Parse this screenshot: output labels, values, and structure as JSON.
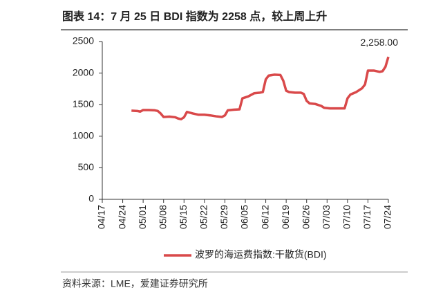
{
  "chart_data": {
    "type": "line",
    "title": "图表 14：7 月 25 日 BDI 指数为 2258 点，较上周上升",
    "source": "资料来源：LME，爱建证券研究所",
    "x": [
      "04/27",
      "04/29",
      "04/30",
      "05/01",
      "05/03",
      "05/05",
      "05/06",
      "05/07",
      "05/08",
      "05/10",
      "05/12",
      "05/13",
      "05/14",
      "05/15",
      "05/16",
      "05/18",
      "05/20",
      "05/22",
      "05/24",
      "05/26",
      "05/28",
      "05/29",
      "05/30",
      "06/01",
      "06/03",
      "06/04",
      "06/06",
      "06/08",
      "06/10",
      "06/11",
      "06/12",
      "06/13",
      "06/15",
      "06/17",
      "06/18",
      "06/19",
      "06/20",
      "06/22",
      "06/24",
      "06/25",
      "06/26",
      "06/27",
      "06/29",
      "07/01",
      "07/02",
      "07/04",
      "07/06",
      "07/08",
      "07/09",
      "07/10",
      "07/11",
      "07/13",
      "07/15",
      "07/16",
      "07/17",
      "07/19",
      "07/21",
      "07/22",
      "07/23",
      "07/24"
    ],
    "series": [
      {
        "name": "波罗的海运费指数:干散货(BDI)",
        "color": "#d9494a",
        "values": [
          1405,
          1400,
          1390,
          1415,
          1415,
          1410,
          1400,
          1360,
          1305,
          1310,
          1300,
          1280,
          1270,
          1300,
          1385,
          1360,
          1340,
          1340,
          1330,
          1315,
          1305,
          1330,
          1410,
          1420,
          1425,
          1600,
          1630,
          1680,
          1690,
          1700,
          1900,
          1960,
          1975,
          1970,
          1880,
          1720,
          1700,
          1690,
          1690,
          1670,
          1560,
          1520,
          1510,
          1480,
          1450,
          1440,
          1440,
          1440,
          1440,
          1600,
          1660,
          1700,
          1760,
          1820,
          2040,
          2040,
          2020,
          2030,
          2100,
          2258
        ],
        "value_labels": [
          null,
          null,
          null,
          null,
          null,
          null,
          null,
          null,
          null,
          null,
          null,
          null,
          null,
          null,
          null,
          null,
          null,
          null,
          null,
          null,
          null,
          null,
          null,
          null,
          null,
          null,
          null,
          null,
          null,
          null,
          null,
          null,
          null,
          null,
          null,
          null,
          null,
          null,
          null,
          null,
          null,
          null,
          null,
          null,
          null,
          null,
          null,
          null,
          null,
          null,
          null,
          null,
          null,
          null,
          null,
          null,
          null,
          null,
          null,
          "2,258.00"
        ]
      }
    ],
    "xlim": [
      "04/17",
      "07/24"
    ],
    "xticks": [
      "04/17",
      "04/24",
      "05/01",
      "05/08",
      "05/15",
      "05/22",
      "05/29",
      "06/05",
      "06/12",
      "06/19",
      "06/26",
      "07/03",
      "07/10",
      "07/17",
      "07/24"
    ],
    "ylim": [
      0,
      2500
    ],
    "yticks": [
      0,
      500,
      1000,
      1500,
      2000,
      2500
    ],
    "legend": "bottom"
  }
}
